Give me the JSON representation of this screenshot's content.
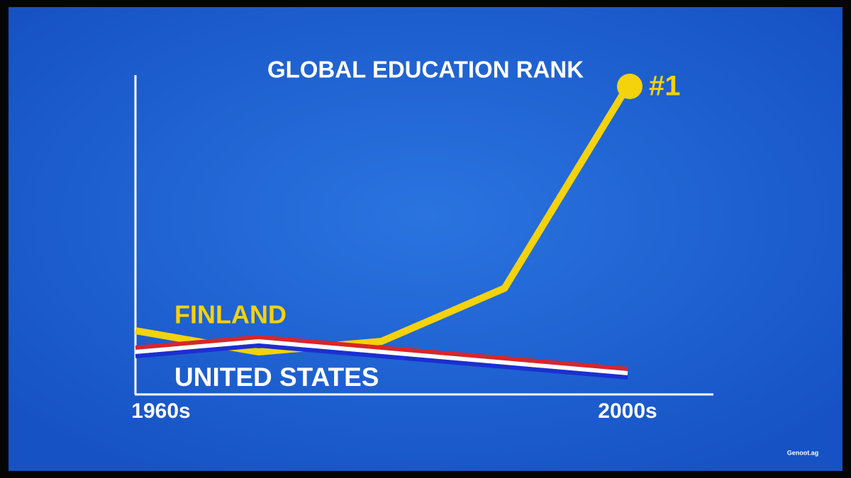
{
  "chart_data": {
    "type": "line",
    "title": "GLOBAL EDUCATION RANK",
    "categories": [
      "1960s",
      null,
      null,
      null,
      "2000s"
    ],
    "series": [
      {
        "name": "FINLAND",
        "color": "#f4d20c",
        "values": [
          24,
          26,
          25,
          20,
          1
        ],
        "value_labels": [
          null,
          null,
          null,
          null,
          "#1"
        ]
      },
      {
        "name": "UNITED STATES",
        "colors": [
          "#d8262a",
          "#ffffff",
          "#1b2fd0"
        ],
        "values": [
          26,
          25,
          26,
          27,
          28
        ]
      }
    ],
    "ylim": [
      1,
      30
    ],
    "y_inverted": true,
    "watermark": "Genoot.ag"
  }
}
